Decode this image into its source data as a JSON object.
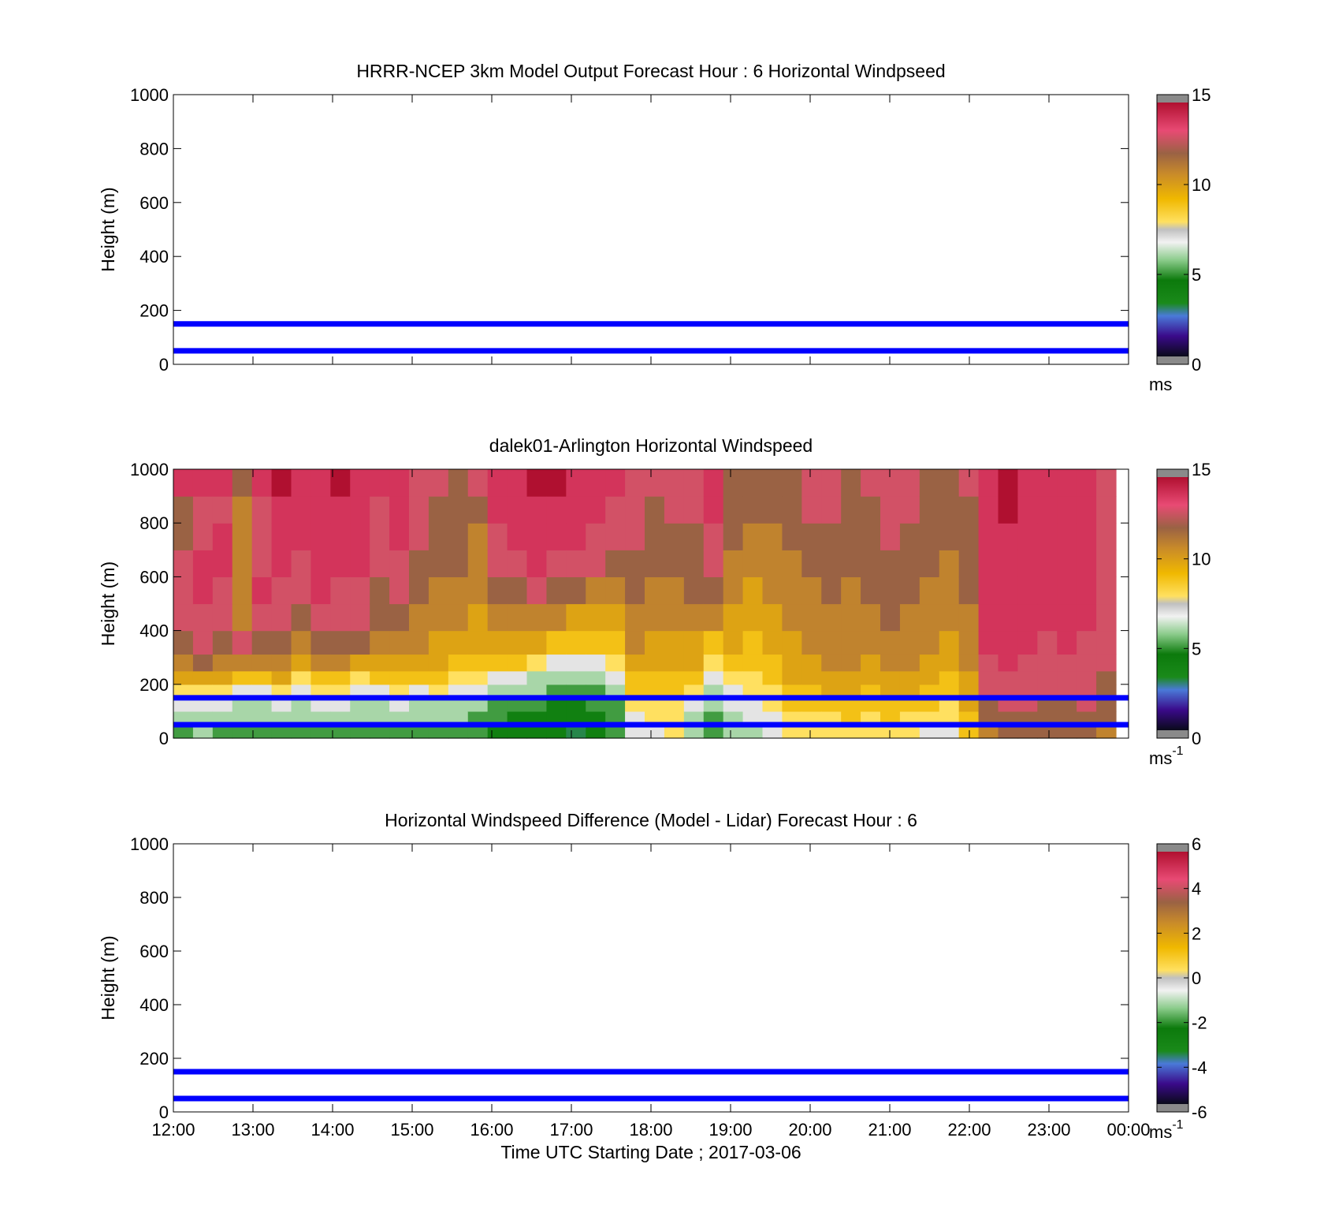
{
  "chart_data": [
    {
      "type": "heatmap",
      "title": "HRRR-NCEP 3km Model Output   Forecast Hour : 6 Horizontal Windpseed",
      "ylabel": "Height (m)",
      "ylim": [
        0,
        1000
      ],
      "yticks": [
        "0",
        "200",
        "400",
        "600",
        "800",
        "1000"
      ],
      "xticks": [
        "12:00",
        "13:00",
        "14:00",
        "15:00",
        "16:00",
        "17:00",
        "18:00",
        "19:00",
        "20:00",
        "21:00",
        "22:00",
        "23:00",
        "00:00"
      ],
      "x_tick_labels_shown": false,
      "colorbar": {
        "min": 0,
        "max": 15,
        "ticks": [
          "0",
          "5",
          "10",
          "15"
        ],
        "unit": "ms",
        "unit_sup": "",
        "scheme": "speed"
      },
      "reference_lines_m": [
        150,
        50
      ],
      "field_present": false
    },
    {
      "type": "heatmap",
      "title": "dalek01-Arlington  Horizontal Windspeed",
      "ylabel": "Height (m)",
      "ylim": [
        0,
        1000
      ],
      "yticks": [
        "0",
        "200",
        "400",
        "600",
        "800",
        "1000"
      ],
      "xticks": [
        "12:00",
        "13:00",
        "14:00",
        "15:00",
        "16:00",
        "17:00",
        "18:00",
        "19:00",
        "20:00",
        "21:00",
        "22:00",
        "23:00",
        "00:00"
      ],
      "x_tick_labels_shown": false,
      "colorbar": {
        "min": 0,
        "max": 15,
        "ticks": [
          "0",
          "5",
          "10",
          "15"
        ],
        "unit": "ms",
        "unit_sup": "-1",
        "scheme": "speed"
      },
      "reference_lines_m": [
        150,
        50
      ],
      "field_present": true,
      "time_columns": [
        "12:00",
        "12:15",
        "12:30",
        "12:45",
        "13:00",
        "13:15",
        "13:30",
        "13:45",
        "14:00",
        "14:15",
        "14:30",
        "14:45",
        "15:00",
        "15:15",
        "15:30",
        "15:45",
        "16:00",
        "16:15",
        "16:30",
        "16:45",
        "17:00",
        "17:15",
        "17:30",
        "17:45",
        "18:00",
        "18:15",
        "18:30",
        "18:45",
        "19:00",
        "19:15",
        "19:30",
        "19:45",
        "20:00",
        "20:15",
        "20:30",
        "20:45",
        "21:00",
        "21:15",
        "21:30",
        "21:45",
        "22:00",
        "22:15",
        "22:30",
        "22:45",
        "23:00",
        "23:15",
        "23:30",
        "23:45"
      ],
      "height_levels_m": [
        25,
        75,
        125,
        175,
        225,
        275,
        350,
        450,
        550,
        650,
        750,
        850,
        950
      ],
      "windspeed_ms": [
        [
          5,
          6,
          7,
          8,
          10,
          11,
          12,
          13,
          13,
          13,
          12,
          12,
          14
        ],
        [
          6,
          6,
          7,
          8,
          10,
          12,
          13,
          13,
          14,
          14,
          13,
          13,
          14
        ],
        [
          5,
          6,
          7,
          8,
          10,
          11,
          12,
          13,
          13,
          14,
          14,
          13,
          14
        ],
        [
          5,
          6,
          6,
          7,
          9,
          11,
          13,
          11,
          11,
          11,
          11,
          11,
          12
        ],
        [
          5,
          6,
          6,
          7,
          9,
          11,
          12,
          13,
          14,
          13,
          13,
          13,
          14
        ],
        [
          5,
          6,
          7,
          8,
          10,
          11,
          12,
          13,
          13,
          14,
          14,
          14,
          15
        ],
        [
          5,
          6,
          6,
          7,
          8,
          10,
          11,
          12,
          13,
          13,
          14,
          14,
          14
        ],
        [
          5,
          6,
          7,
          8,
          9,
          11,
          12,
          13,
          14,
          14,
          14,
          14,
          14
        ],
        [
          5,
          6,
          7,
          8,
          9,
          11,
          12,
          13,
          13,
          14,
          14,
          14,
          15
        ],
        [
          5,
          6,
          6,
          7,
          8,
          10,
          12,
          13,
          13,
          14,
          14,
          14,
          14
        ],
        [
          5,
          6,
          6,
          7,
          9,
          10,
          11,
          12,
          12,
          13,
          13,
          13,
          14
        ],
        [
          5,
          6,
          7,
          8,
          9,
          10,
          11,
          12,
          13,
          13,
          14,
          14,
          14
        ],
        [
          5,
          6,
          6,
          7,
          9,
          10,
          11,
          11,
          12,
          12,
          13,
          13,
          13
        ],
        [
          5,
          6,
          6,
          8,
          9,
          10,
          10,
          11,
          11,
          12,
          12,
          12,
          13
        ],
        [
          5,
          6,
          6,
          7,
          8,
          9,
          10,
          11,
          11,
          12,
          12,
          12,
          12
        ],
        [
          5,
          5,
          6,
          7,
          8,
          9,
          10,
          10,
          11,
          11,
          11,
          12,
          13
        ],
        [
          4,
          5,
          5,
          6,
          7,
          9,
          10,
          11,
          12,
          13,
          13,
          14,
          14
        ],
        [
          4,
          4,
          5,
          6,
          7,
          9,
          10,
          11,
          12,
          13,
          14,
          14,
          14
        ],
        [
          4,
          4,
          5,
          6,
          6,
          8,
          10,
          11,
          13,
          14,
          14,
          14,
          15
        ],
        [
          4,
          4,
          4,
          5,
          6,
          7,
          9,
          11,
          12,
          13,
          14,
          14,
          15
        ],
        [
          3,
          4,
          4,
          5,
          6,
          7,
          9,
          10,
          12,
          13,
          14,
          14,
          14
        ],
        [
          4,
          4,
          5,
          5,
          6,
          7,
          9,
          10,
          11,
          13,
          13,
          14,
          14
        ],
        [
          5,
          5,
          5,
          6,
          7,
          8,
          9,
          10,
          11,
          12,
          13,
          13,
          14
        ],
        [
          7,
          7,
          8,
          9,
          9,
          10,
          11,
          11,
          12,
          12,
          13,
          13,
          13
        ],
        [
          7,
          8,
          8,
          9,
          9,
          10,
          10,
          11,
          11,
          12,
          12,
          12,
          13
        ],
        [
          8,
          8,
          8,
          9,
          9,
          10,
          10,
          11,
          11,
          12,
          12,
          13,
          13
        ],
        [
          6,
          6,
          7,
          8,
          9,
          10,
          10,
          11,
          12,
          12,
          12,
          13,
          13
        ],
        [
          5,
          5,
          6,
          6,
          7,
          8,
          9,
          11,
          12,
          13,
          13,
          14,
          14
        ],
        [
          6,
          6,
          7,
          7,
          8,
          9,
          10,
          10,
          11,
          11,
          12,
          12,
          12
        ],
        [
          6,
          7,
          7,
          8,
          8,
          9,
          9,
          10,
          10,
          11,
          11,
          12,
          12
        ],
        [
          7,
          7,
          8,
          8,
          9,
          9,
          10,
          10,
          11,
          11,
          11,
          12,
          12
        ],
        [
          8,
          8,
          9,
          9,
          10,
          10,
          10,
          11,
          11,
          11,
          12,
          12,
          12
        ],
        [
          8,
          8,
          9,
          9,
          10,
          10,
          11,
          11,
          11,
          12,
          12,
          13,
          13
        ],
        [
          8,
          8,
          9,
          10,
          10,
          11,
          11,
          11,
          12,
          12,
          12,
          13,
          13
        ],
        [
          8,
          9,
          9,
          10,
          10,
          11,
          11,
          11,
          11,
          12,
          12,
          12,
          12
        ],
        [
          8,
          8,
          9,
          9,
          10,
          10,
          11,
          11,
          12,
          12,
          12,
          12,
          13
        ],
        [
          8,
          9,
          9,
          10,
          10,
          11,
          11,
          12,
          12,
          12,
          13,
          13,
          13
        ],
        [
          8,
          8,
          9,
          10,
          10,
          11,
          11,
          11,
          12,
          12,
          12,
          13,
          13
        ],
        [
          7,
          8,
          9,
          9,
          10,
          10,
          11,
          11,
          11,
          12,
          12,
          12,
          12
        ],
        [
          7,
          8,
          8,
          9,
          9,
          10,
          10,
          11,
          11,
          11,
          12,
          12,
          12
        ],
        [
          9,
          9,
          10,
          10,
          10,
          11,
          11,
          11,
          12,
          12,
          12,
          12,
          13
        ],
        [
          11,
          12,
          12,
          13,
          13,
          13,
          14,
          14,
          14,
          14,
          14,
          14,
          14
        ],
        [
          12,
          12,
          13,
          13,
          13,
          14,
          14,
          14,
          14,
          14,
          14,
          15,
          15
        ],
        [
          12,
          12,
          13,
          13,
          13,
          13,
          14,
          14,
          14,
          14,
          14,
          14,
          14
        ],
        [
          12,
          12,
          12,
          13,
          13,
          13,
          13,
          14,
          14,
          14,
          14,
          14,
          14
        ],
        [
          12,
          12,
          12,
          13,
          13,
          13,
          14,
          14,
          14,
          14,
          14,
          14,
          14
        ],
        [
          12,
          12,
          13,
          13,
          13,
          13,
          13,
          14,
          14,
          14,
          14,
          14,
          14
        ],
        [
          11,
          12,
          12,
          12,
          12,
          13,
          13,
          13,
          13,
          13,
          13,
          13,
          13
        ]
      ]
    },
    {
      "type": "heatmap",
      "title": "Horizontal Windspeed Difference (Model - Lidar) Forecast Hour : 6",
      "ylabel": "Height (m)",
      "xlabel": "Time UTC  Starting Date ; 2017-03-06",
      "ylim": [
        0,
        1000
      ],
      "yticks": [
        "0",
        "200",
        "400",
        "600",
        "800",
        "1000"
      ],
      "xticks": [
        "12:00",
        "13:00",
        "14:00",
        "15:00",
        "16:00",
        "17:00",
        "18:00",
        "19:00",
        "20:00",
        "21:00",
        "22:00",
        "23:00",
        "00:00"
      ],
      "x_tick_labels_shown": true,
      "colorbar": {
        "min": -6,
        "max": 6,
        "ticks": [
          "-6",
          "-4",
          "-2",
          "0",
          "2",
          "4",
          "6"
        ],
        "unit": "ms",
        "unit_sup": "-1",
        "scheme": "diff"
      },
      "reference_lines_m": [
        150,
        50
      ],
      "field_present": false
    }
  ]
}
